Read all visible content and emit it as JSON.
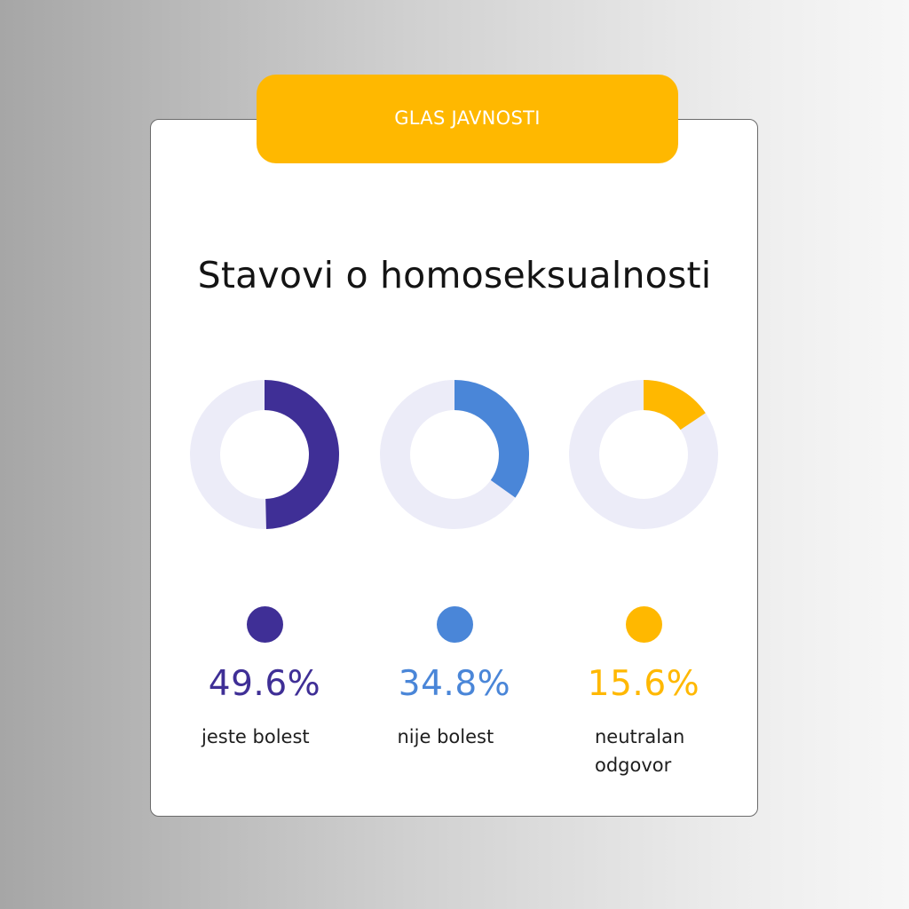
{
  "badge": {
    "text": "GLAS JAVNOSTI"
  },
  "title": "Stavovi o homoseksualnosti",
  "colors": {
    "track": "#ececf8",
    "badge": "#ffb800"
  },
  "chart_data": {
    "type": "pie",
    "title": "Stavovi o homoseksualnosti",
    "unit": "%",
    "categories": [
      "jeste bolest",
      "nije bolest",
      "neutralan odgovor"
    ],
    "values": [
      49.6,
      34.8,
      15.6
    ],
    "series": [
      {
        "label": "jeste bolest",
        "value": 49.6,
        "display": "49.6%",
        "color": "#3f2f96",
        "label_lines": [
          "jeste bolest"
        ]
      },
      {
        "label": "nije bolest",
        "value": 34.8,
        "display": "34.8%",
        "color": "#4a86d8",
        "label_lines": [
          "nije bolest"
        ]
      },
      {
        "label": "neutralan odgovor",
        "value": 15.6,
        "display": "15.6%",
        "color": "#ffb800",
        "label_lines": [
          "neutralan",
          "odgovor"
        ]
      }
    ]
  }
}
